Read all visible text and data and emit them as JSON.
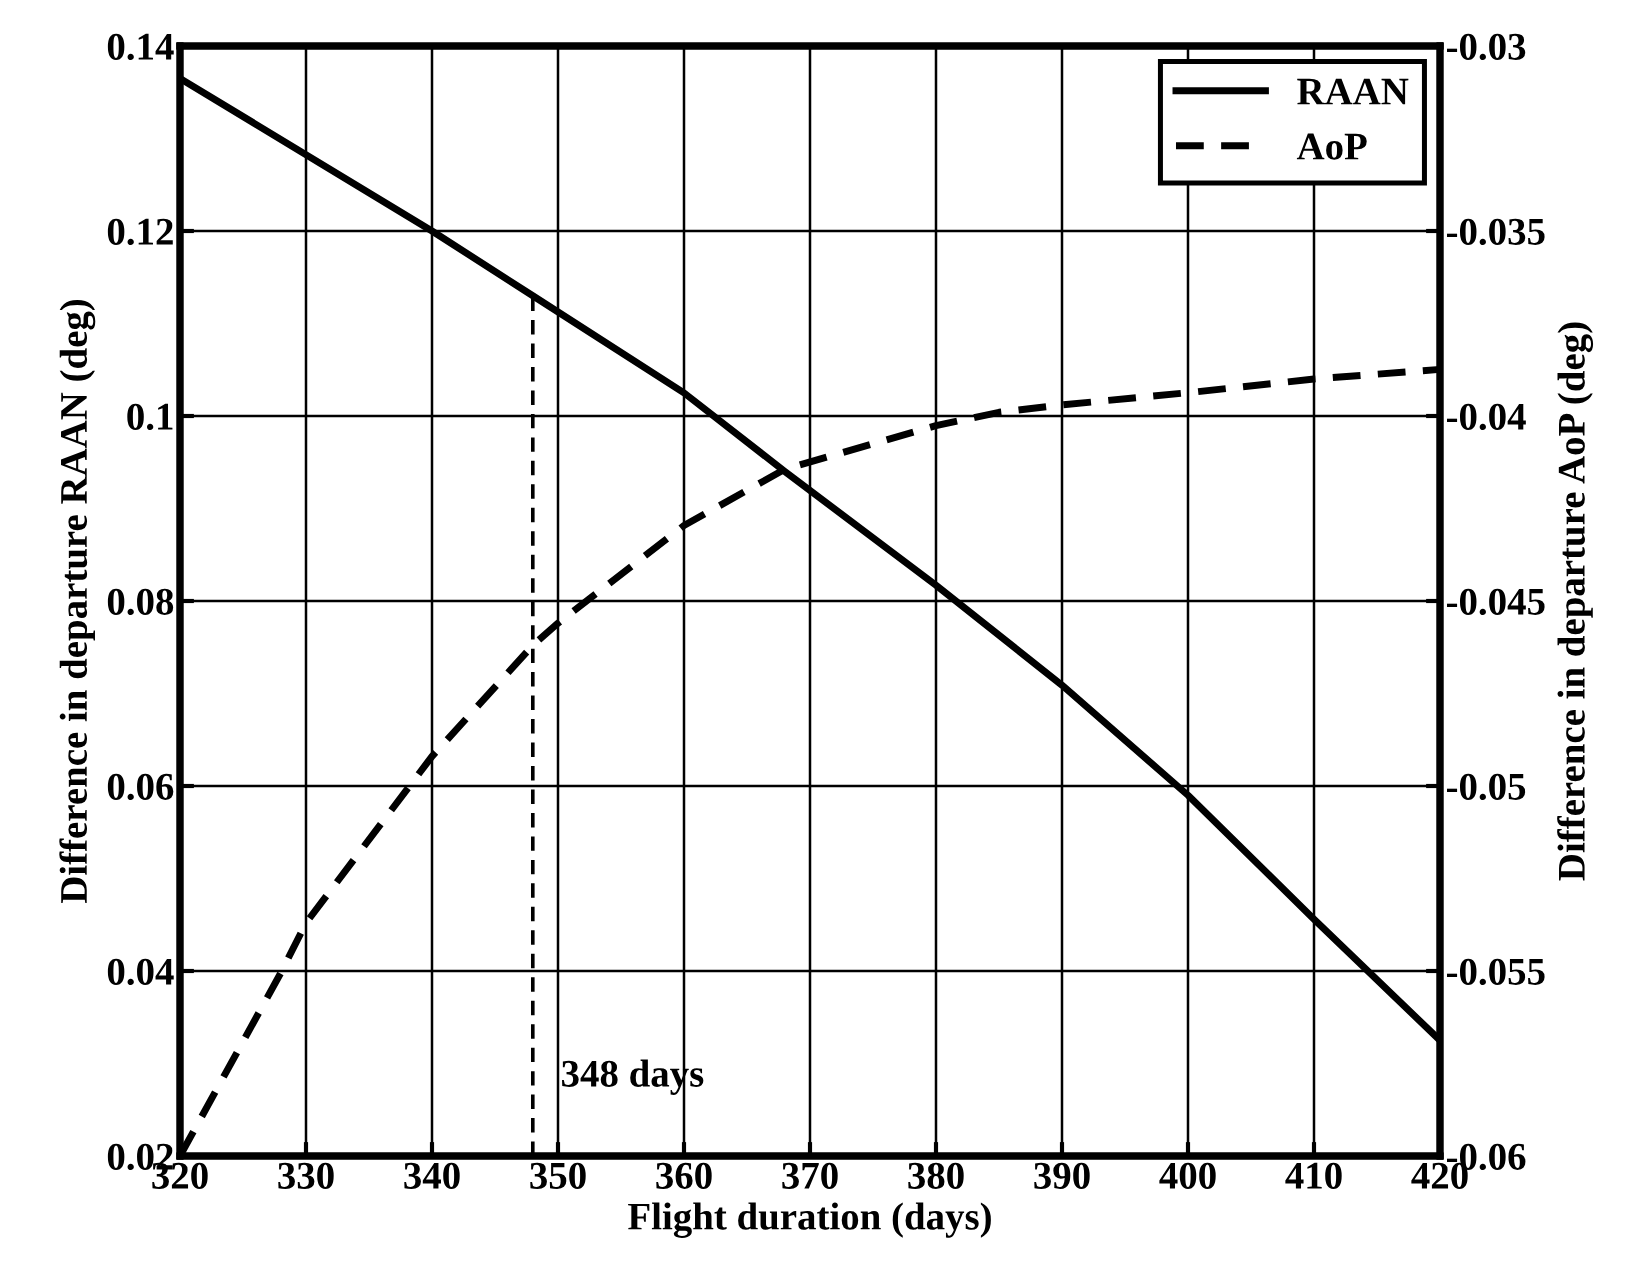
{
  "chart_data": {
    "type": "line",
    "xlabel": "Flight duration (days)",
    "ylabel": "Difference in departure RAAN (deg)",
    "y2label": "Difference in departure AoP (deg)",
    "xlim": [
      320,
      420
    ],
    "xticks": [
      320,
      330,
      340,
      350,
      360,
      370,
      380,
      390,
      400,
      410,
      420
    ],
    "ylim": [
      0.02,
      0.14
    ],
    "yticks": [
      0.02,
      0.04,
      0.06,
      0.08,
      0.1,
      0.12,
      0.14
    ],
    "y2lim": [
      -0.06,
      -0.03
    ],
    "y2ticks": [
      -0.06,
      -0.055,
      -0.05,
      -0.045,
      -0.04,
      -0.035,
      -0.03
    ],
    "grid": true,
    "legend": "top right",
    "series": [
      {
        "name": "RAAN",
        "color": "#000000",
        "line_style": "solid",
        "x": [
          320,
          340,
          348,
          360,
          368,
          380,
          390,
          400,
          410,
          420
        ],
        "values": [
          0.1365,
          0.12,
          0.113,
          0.1025,
          0.094,
          0.0817,
          0.0709,
          0.059,
          0.0456,
          0.0325
        ]
      },
      {
        "name": "AoP",
        "color": "#000000",
        "line_style": "dashed",
        "axis": "y2",
        "x": [
          320,
          328,
          330,
          340,
          348,
          350,
          360,
          368,
          380,
          385,
          390,
          400,
          410,
          420
        ],
        "values": [
          -0.06,
          -0.05505,
          -0.0537,
          -0.0492,
          -0.0462,
          -0.0456,
          -0.04296,
          -0.04144,
          -0.04026,
          -0.0399,
          -0.0397,
          -0.03937,
          -0.039,
          -0.03874
        ]
      }
    ],
    "ref_lines": [
      {
        "axis": "x",
        "value": 348,
        "label": "348 days",
        "color": "#000000",
        "line_style": "dashed"
      }
    ]
  }
}
